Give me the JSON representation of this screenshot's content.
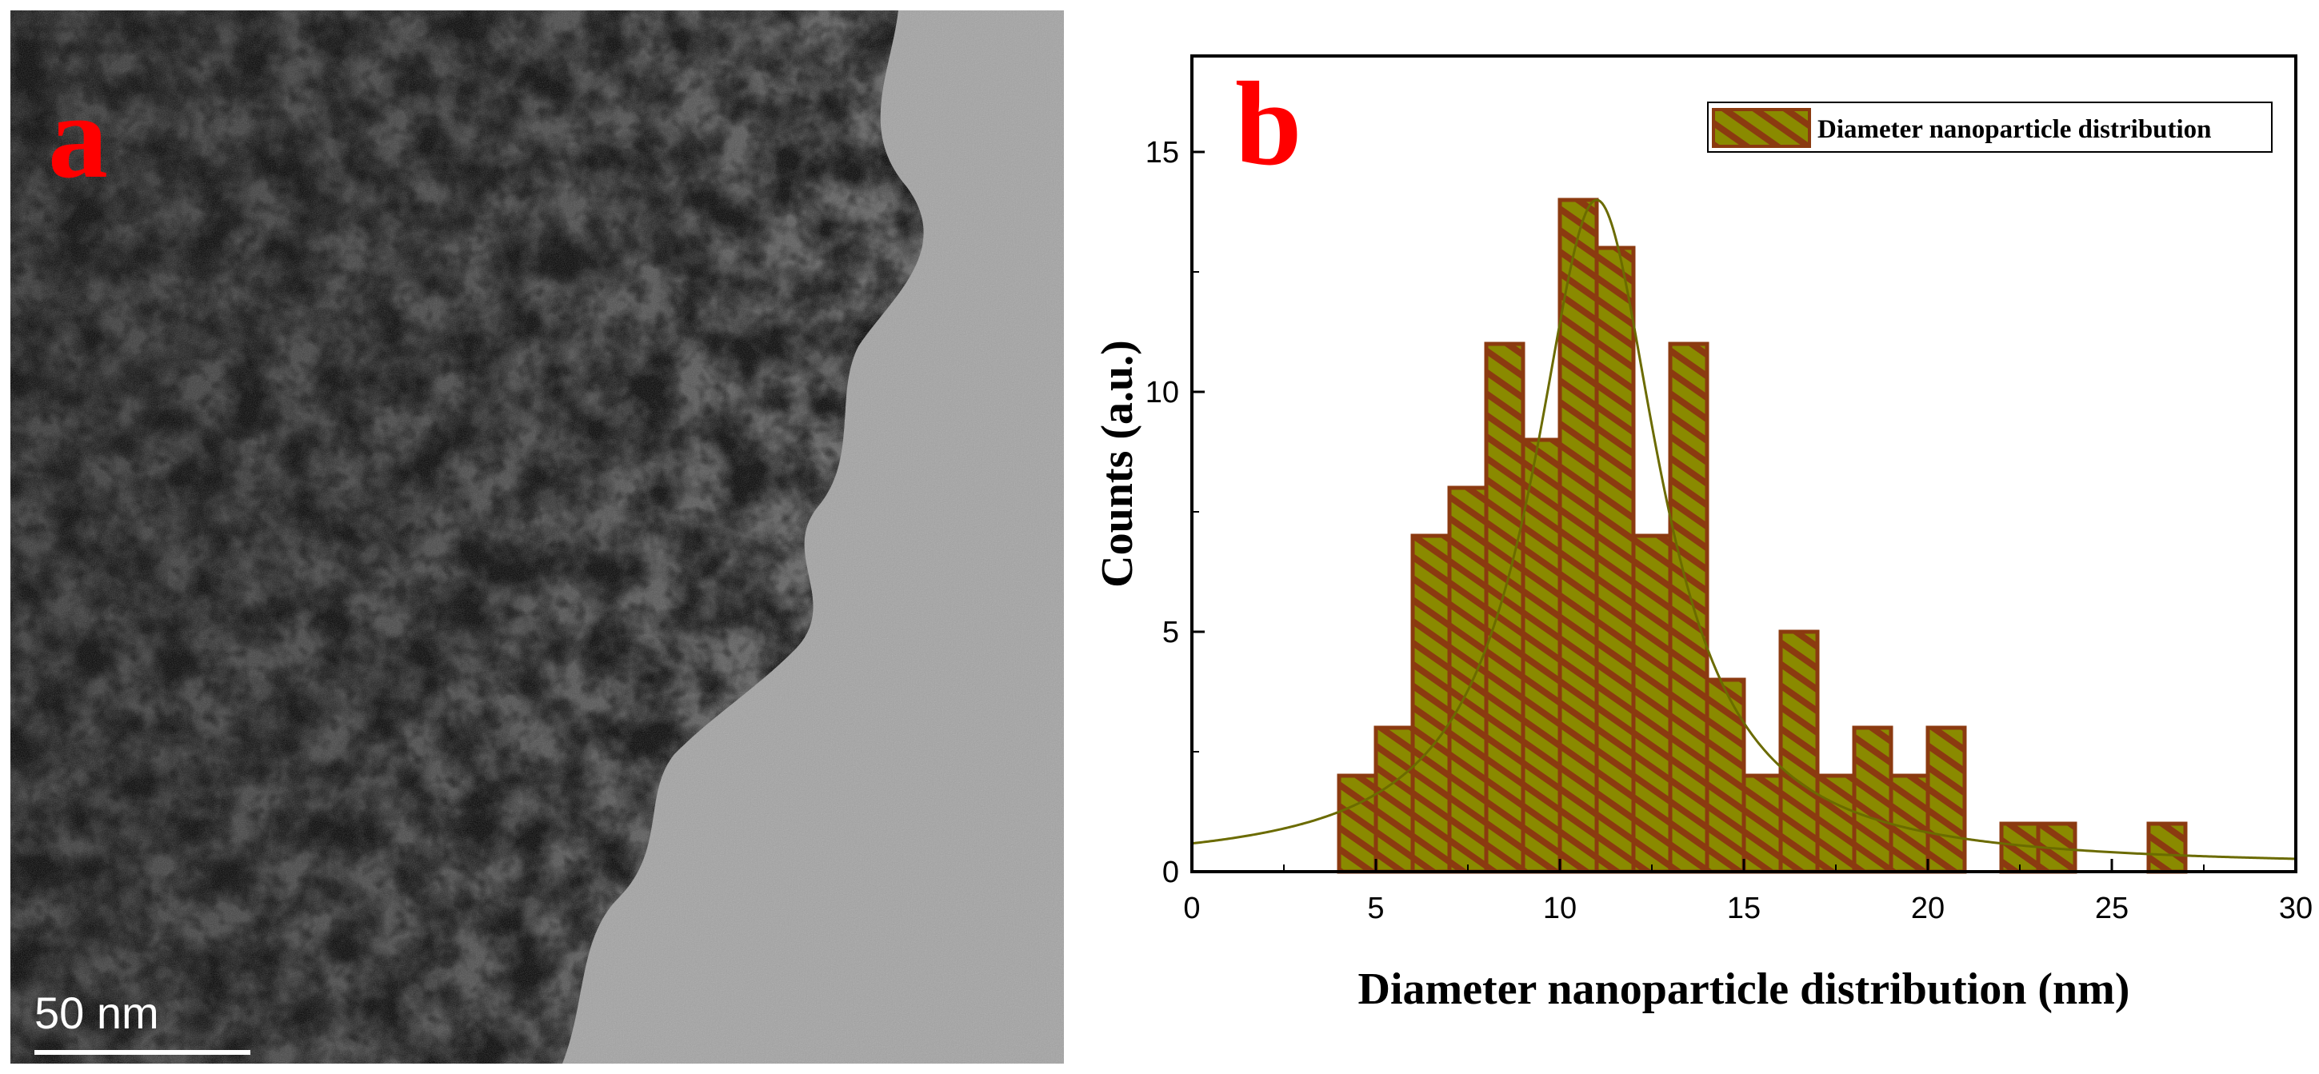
{
  "panels": {
    "a": {
      "label": "a",
      "scale_bar_text": "50 nm"
    },
    "b": {
      "label": "b"
    }
  },
  "colors": {
    "panel_label": "#ff0000",
    "bar_fill": "#8a8a00",
    "bar_hatch": "#8b3a10",
    "bar_edge": "#8b3a10",
    "fit_line": "#6b6b00",
    "axis": "#000000"
  },
  "chart_data": {
    "type": "bar",
    "subtype": "histogram with fitted curve",
    "title": "",
    "xlabel": "Diameter nanoparticle distribution (nm)",
    "ylabel": "Counts (a.u.)",
    "xlim": [
      0,
      30
    ],
    "ylim": [
      0,
      17
    ],
    "xticks": [
      0,
      5,
      10,
      15,
      20,
      25,
      30
    ],
    "yticks": [
      0,
      5,
      10,
      15
    ],
    "grid": false,
    "legend_position": "top-right",
    "bin_width": 1,
    "series": [
      {
        "name": "Diameter nanoparticle distribution",
        "bins": [
          {
            "x0": 4,
            "x1": 5,
            "count": 2
          },
          {
            "x0": 5,
            "x1": 6,
            "count": 3
          },
          {
            "x0": 6,
            "x1": 7,
            "count": 7
          },
          {
            "x0": 7,
            "x1": 8,
            "count": 8
          },
          {
            "x0": 8,
            "x1": 9,
            "count": 11
          },
          {
            "x0": 9,
            "x1": 10,
            "count": 9
          },
          {
            "x0": 10,
            "x1": 11,
            "count": 14
          },
          {
            "x0": 11,
            "x1": 12,
            "count": 13
          },
          {
            "x0": 12,
            "x1": 13,
            "count": 7
          },
          {
            "x0": 13,
            "x1": 14,
            "count": 11
          },
          {
            "x0": 14,
            "x1": 15,
            "count": 4
          },
          {
            "x0": 15,
            "x1": 16,
            "count": 2
          },
          {
            "x0": 16,
            "x1": 17,
            "count": 5
          },
          {
            "x0": 17,
            "x1": 18,
            "count": 2
          },
          {
            "x0": 18,
            "x1": 19,
            "count": 3
          },
          {
            "x0": 19,
            "x1": 20,
            "count": 2
          },
          {
            "x0": 20,
            "x1": 21,
            "count": 3
          },
          {
            "x0": 22,
            "x1": 23,
            "count": 1
          },
          {
            "x0": 23,
            "x1": 24,
            "count": 1
          },
          {
            "x0": 26,
            "x1": 27,
            "count": 1
          }
        ]
      }
    ],
    "fit": {
      "type": "lorentzian",
      "center": 11,
      "peak": 14,
      "fwhm": 4.2,
      "baseline": 0.1
    }
  }
}
